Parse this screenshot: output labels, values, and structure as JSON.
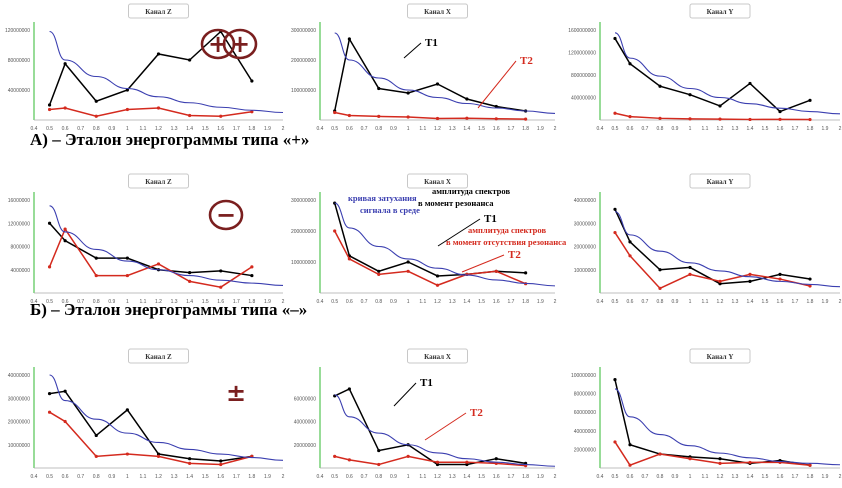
{
  "sections": [
    {
      "caption": "А) – Эталон энергограммы типа «+»",
      "symbol": "+",
      "symbol_circled": true,
      "symbol_color": "#7a1f1f"
    },
    {
      "caption": "Б) – Эталон энергограммы типа «–»",
      "symbol": "−",
      "symbol_circled": true,
      "symbol_color": "#7a1f1f"
    },
    {
      "caption": "",
      "symbol": "±",
      "symbol_circled": false,
      "symbol_color": "#7a1f1f"
    }
  ],
  "colors": {
    "t1": "#000000",
    "t2": "#d42a1e",
    "decay": "#3b3fb0",
    "axis_y": "#53c553",
    "axis_x": "#aaaaaa"
  },
  "chart_data": [
    {
      "type": "line",
      "title": "Канал Z",
      "x": [
        0.5,
        0.6,
        0.8,
        1,
        1.2,
        1.4,
        1.6,
        1.8,
        2
      ],
      "ylim": [
        0,
        120000000
      ],
      "yticks": [
        {
          "v": 40000000,
          "l": "40000000"
        },
        {
          "v": 80000000,
          "l": "80000000"
        },
        {
          "v": 120000000,
          "l": "120000000"
        }
      ],
      "series": [
        {
          "name": "",
          "role": "t1",
          "values": [
            20000000,
            75000000,
            25000000,
            40000000,
            88000000,
            80000000,
            118000000,
            52000000,
            null
          ]
        },
        {
          "name": "",
          "role": "t2",
          "values": [
            14000000,
            16000000,
            5000000,
            14000000,
            16000000,
            6000000,
            5000000,
            11000000,
            null
          ]
        },
        {
          "name": "",
          "role": "decay",
          "values": [
            118000000,
            80000000,
            58000000,
            42000000,
            31000000,
            23000000,
            17000000,
            13000000,
            10000000
          ]
        }
      ]
    },
    {
      "type": "line",
      "title": "Канал X",
      "x": [
        0.5,
        0.6,
        0.8,
        1,
        1.2,
        1.4,
        1.6,
        1.8,
        2
      ],
      "ylim": [
        0,
        300000000
      ],
      "yticks": [
        {
          "v": 100000000,
          "l": "100000000"
        },
        {
          "v": 200000000,
          "l": "200000000"
        },
        {
          "v": 300000000,
          "l": "300000000"
        }
      ],
      "series": [
        {
          "name": "T1",
          "role": "t1",
          "values": [
            30000000,
            270000000,
            105000000,
            90000000,
            120000000,
            70000000,
            45000000,
            30000000,
            null
          ]
        },
        {
          "name": "T2",
          "role": "t2",
          "values": [
            25000000,
            15000000,
            12000000,
            10000000,
            5000000,
            6000000,
            4000000,
            3000000,
            null
          ]
        },
        {
          "name": "",
          "role": "decay",
          "values": [
            290000000,
            200000000,
            140000000,
            100000000,
            75000000,
            55000000,
            40000000,
            30000000,
            22000000
          ]
        }
      ]
    },
    {
      "type": "line",
      "title": "Канал Y",
      "x": [
        0.5,
        0.6,
        0.8,
        1,
        1.2,
        1.4,
        1.6,
        1.8,
        2
      ],
      "ylim": [
        0,
        1600000000
      ],
      "yticks": [
        {
          "v": 400000000,
          "l": "400000000"
        },
        {
          "v": 800000000,
          "l": "800000000"
        },
        {
          "v": 1200000000,
          "l": "1200000000"
        },
        {
          "v": 1600000000,
          "l": "1600000000"
        }
      ],
      "series": [
        {
          "name": "",
          "role": "t1",
          "values": [
            1450000000,
            1000000000,
            600000000,
            450000000,
            250000000,
            650000000,
            150000000,
            350000000,
            null
          ]
        },
        {
          "name": "",
          "role": "t2",
          "values": [
            120000000,
            60000000,
            30000000,
            20000000,
            15000000,
            10000000,
            12000000,
            8000000,
            null
          ]
        },
        {
          "name": "",
          "role": "decay",
          "values": [
            1550000000,
            1100000000,
            780000000,
            560000000,
            400000000,
            290000000,
            210000000,
            150000000,
            110000000
          ]
        }
      ]
    },
    {
      "type": "line",
      "title": "Канал Z",
      "x": [
        0.5,
        0.6,
        0.8,
        1,
        1.2,
        1.4,
        1.6,
        1.8,
        2
      ],
      "ylim": [
        0,
        16000000
      ],
      "yticks": [
        {
          "v": 4000000,
          "l": "4000000"
        },
        {
          "v": 8000000,
          "l": "8000000"
        },
        {
          "v": 12000000,
          "l": "12000000"
        },
        {
          "v": 16000000,
          "l": "16000000"
        }
      ],
      "series": [
        {
          "name": "",
          "role": "t1",
          "values": [
            12000000,
            9000000,
            6000000,
            6000000,
            4000000,
            3500000,
            3800000,
            3000000,
            null
          ]
        },
        {
          "name": "",
          "role": "t2",
          "values": [
            4500000,
            11000000,
            3000000,
            3000000,
            5000000,
            2000000,
            1000000,
            4500000,
            null
          ]
        },
        {
          "name": "",
          "role": "decay",
          "values": [
            15000000,
            10500000,
            7500000,
            5500000,
            4000000,
            3000000,
            2200000,
            1700000,
            1300000
          ]
        }
      ]
    },
    {
      "type": "line",
      "title": "Канал X",
      "x": [
        0.5,
        0.6,
        0.8,
        1,
        1.2,
        1.4,
        1.6,
        1.8,
        2
      ],
      "ylim": [
        0,
        300000000
      ],
      "yticks": [
        {
          "v": 100000000,
          "l": "100000000"
        },
        {
          "v": 200000000,
          "l": "200000000"
        },
        {
          "v": 300000000,
          "l": "300000000"
        }
      ],
      "series": [
        {
          "name": "T1",
          "role": "t1",
          "values": [
            290000000,
            120000000,
            70000000,
            100000000,
            55000000,
            60000000,
            70000000,
            65000000,
            null
          ]
        },
        {
          "name": "T2",
          "role": "t2",
          "values": [
            200000000,
            110000000,
            60000000,
            70000000,
            25000000,
            60000000,
            70000000,
            30000000,
            null
          ]
        },
        {
          "name": "",
          "role": "decay",
          "values": [
            290000000,
            210000000,
            150000000,
            110000000,
            80000000,
            58000000,
            42000000,
            31000000,
            23000000
          ]
        }
      ]
    },
    {
      "type": "line",
      "title": "Канал Y",
      "x": [
        0.5,
        0.6,
        0.8,
        1,
        1.2,
        1.4,
        1.6,
        1.8,
        2
      ],
      "ylim": [
        0,
        40000000
      ],
      "yticks": [
        {
          "v": 10000000,
          "l": "10000000"
        },
        {
          "v": 20000000,
          "l": "20000000"
        },
        {
          "v": 30000000,
          "l": "30000000"
        },
        {
          "v": 40000000,
          "l": "40000000"
        }
      ],
      "series": [
        {
          "name": "",
          "role": "t1",
          "values": [
            36000000,
            22000000,
            10000000,
            11000000,
            4000000,
            5000000,
            8000000,
            6000000,
            null
          ]
        },
        {
          "name": "",
          "role": "t2",
          "values": [
            26000000,
            16000000,
            2000000,
            8000000,
            5000000,
            8000000,
            6000000,
            3000000,
            null
          ]
        },
        {
          "name": "",
          "role": "decay",
          "values": [
            35000000,
            25000000,
            18000000,
            13000000,
            9500000,
            7000000,
            5000000,
            3700000,
            2700000
          ]
        }
      ]
    },
    {
      "type": "line",
      "title": "Канал Z",
      "x": [
        0.5,
        0.6,
        0.8,
        1,
        1.2,
        1.4,
        1.6,
        1.8,
        2
      ],
      "ylim": [
        0,
        40000000
      ],
      "yticks": [
        {
          "v": 10000000,
          "l": "10000000"
        },
        {
          "v": 20000000,
          "l": "20000000"
        },
        {
          "v": 30000000,
          "l": "30000000"
        },
        {
          "v": 40000000,
          "l": "40000000"
        }
      ],
      "series": [
        {
          "name": "",
          "role": "t1",
          "values": [
            32000000,
            33000000,
            14000000,
            25000000,
            6000000,
            4000000,
            3000000,
            5000000,
            null
          ]
        },
        {
          "name": "",
          "role": "t2",
          "values": [
            24000000,
            20000000,
            5000000,
            6000000,
            5000000,
            2000000,
            1500000,
            5000000,
            null
          ]
        },
        {
          "name": "",
          "role": "decay",
          "values": [
            40000000,
            29000000,
            21000000,
            15000000,
            11000000,
            8000000,
            6000000,
            4500000,
            3300000
          ]
        }
      ]
    },
    {
      "type": "line",
      "title": "Канал X",
      "x": [
        0.5,
        0.6,
        0.8,
        1,
        1.2,
        1.4,
        1.6,
        1.8,
        2
      ],
      "ylim": [
        0,
        80000000
      ],
      "yticks": [
        {
          "v": 20000000,
          "l": "20000000"
        },
        {
          "v": 40000000,
          "l": "40000000"
        },
        {
          "v": 60000000,
          "l": "60000000"
        }
      ],
      "series": [
        {
          "name": "T1",
          "role": "t1",
          "values": [
            62000000,
            68000000,
            15000000,
            20000000,
            3000000,
            3000000,
            8000000,
            4000000,
            null
          ]
        },
        {
          "name": "T2",
          "role": "t2",
          "values": [
            10000000,
            7000000,
            3000000,
            10000000,
            5000000,
            5000000,
            4000000,
            2000000,
            null
          ]
        },
        {
          "name": "",
          "role": "decay",
          "values": [
            63000000,
            44000000,
            30000000,
            20000000,
            13000000,
            8000000,
            5000000,
            3000000,
            1500000
          ]
        }
      ]
    },
    {
      "type": "line",
      "title": "Канал Y",
      "x": [
        0.5,
        0.6,
        0.8,
        1,
        1.2,
        1.4,
        1.6,
        1.8,
        2
      ],
      "ylim": [
        0,
        100000000
      ],
      "yticks": [
        {
          "v": 20000000,
          "l": "20000000"
        },
        {
          "v": 40000000,
          "l": "40000000"
        },
        {
          "v": 60000000,
          "l": "60000000"
        },
        {
          "v": 80000000,
          "l": "80000000"
        },
        {
          "v": 100000000,
          "l": "100000000"
        }
      ],
      "series": [
        {
          "name": "",
          "role": "t1",
          "values": [
            95000000,
            25000000,
            15000000,
            12000000,
            10000000,
            5000000,
            8000000,
            3000000,
            null
          ]
        },
        {
          "name": "",
          "role": "t2",
          "values": [
            28000000,
            3000000,
            15000000,
            10000000,
            5000000,
            6000000,
            6000000,
            3000000,
            null
          ]
        },
        {
          "name": "",
          "role": "decay",
          "values": [
            85000000,
            55000000,
            36000000,
            24000000,
            16000000,
            11000000,
            7000000,
            5000000,
            3500000
          ]
        }
      ]
    }
  ],
  "annotations": {
    "decay_curve": "кривая затухания сигнала в среде",
    "amp_resonance": "амплитуда спектров в момент резонанса",
    "amp_no_resonance": "амплитуда спектров в момент отсутствия резонанса"
  },
  "x_tick_labels": [
    "0.4",
    "0.5",
    "0.6",
    "0.7",
    "0.8",
    "0.9",
    "1",
    "1.1",
    "1.2",
    "1.3",
    "1.4",
    "1.5",
    "1.6",
    "1.7",
    "1.8",
    "1.9",
    "2"
  ]
}
